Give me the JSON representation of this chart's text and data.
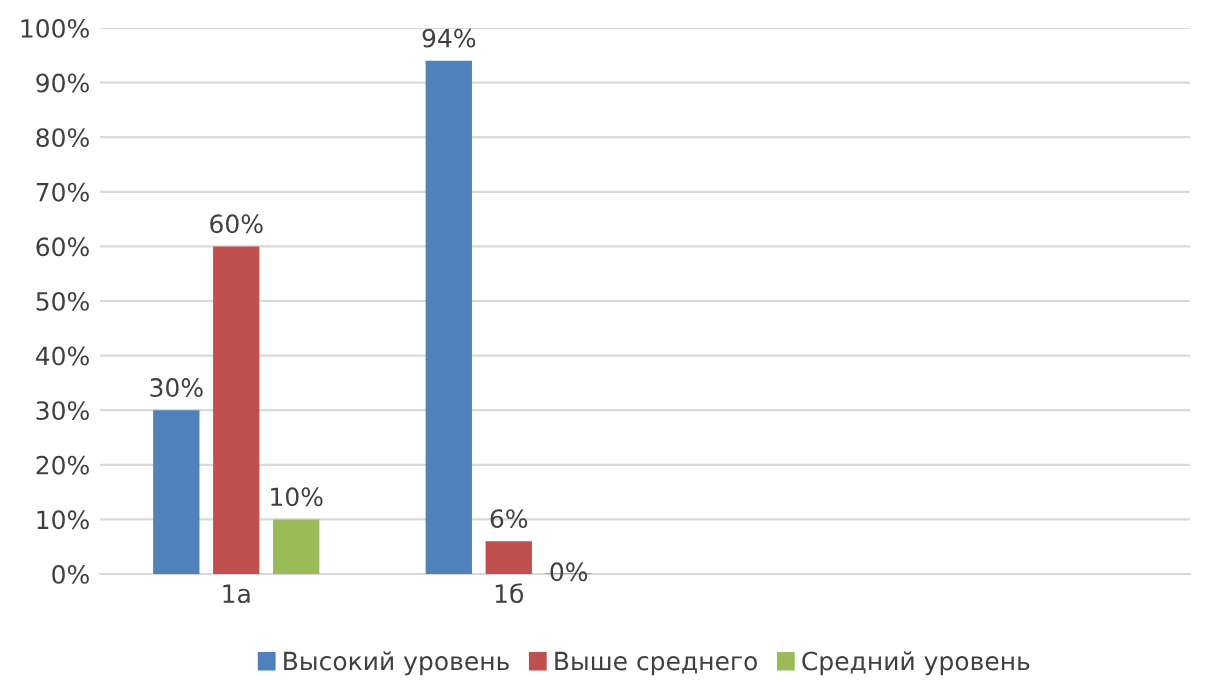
{
  "chart_data": {
    "type": "bar",
    "categories": [
      "1а",
      "1б",
      null,
      null
    ],
    "series": [
      {
        "name": "Высокий уровень",
        "color": "#4f81bd",
        "values": [
          30,
          94,
          null,
          null
        ],
        "value_labels": [
          "30%",
          "94%",
          null,
          null
        ]
      },
      {
        "name": "Выше среднего",
        "color": "#c0504d",
        "values": [
          60,
          6,
          null,
          null
        ],
        "value_labels": [
          "60%",
          "6%",
          null,
          null
        ]
      },
      {
        "name": "Средний уровень",
        "color": "#9bbb59",
        "values": [
          10,
          0,
          null,
          null
        ],
        "value_labels": [
          "10%",
          "0%",
          null,
          null
        ]
      }
    ],
    "ylim": [
      0,
      100
    ],
    "yticks": [
      {
        "value": 0,
        "label": "0%"
      },
      {
        "value": 10,
        "label": "10%"
      },
      {
        "value": 20,
        "label": "20%"
      },
      {
        "value": 30,
        "label": "30%"
      },
      {
        "value": 40,
        "label": "40%"
      },
      {
        "value": 50,
        "label": "50%"
      },
      {
        "value": 60,
        "label": "60%"
      },
      {
        "value": 70,
        "label": "70%"
      },
      {
        "value": 80,
        "label": "80%"
      },
      {
        "value": 90,
        "label": "90%"
      },
      {
        "value": 100,
        "label": "100%"
      }
    ],
    "grid": "y",
    "legend": "bottom"
  }
}
